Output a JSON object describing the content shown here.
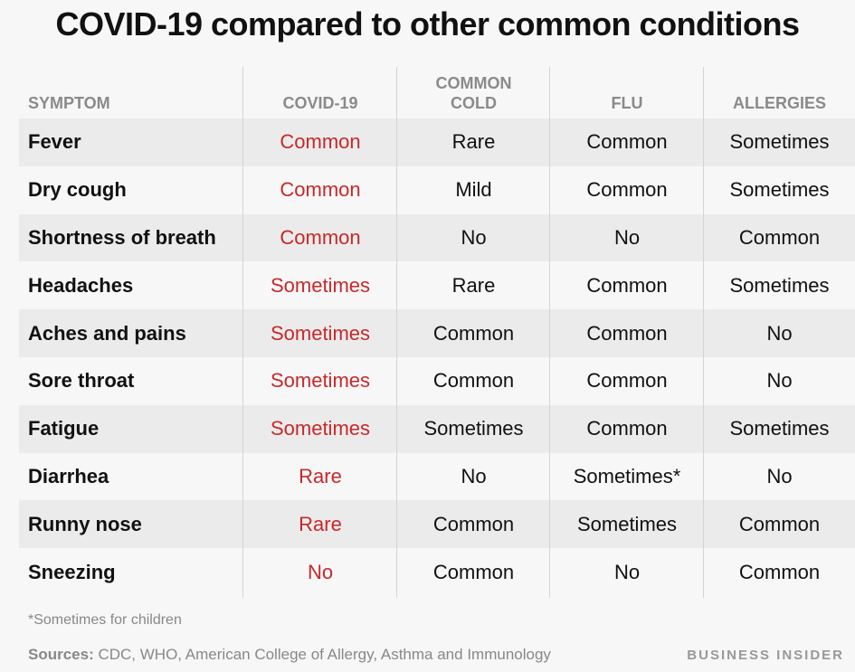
{
  "title": "COVID-19 compared to other common conditions",
  "columns": [
    "SYMPTOM",
    "COVID-19",
    "COMMON\nCOLD",
    "FLU",
    "ALLERGIES"
  ],
  "rows": [
    {
      "symptom": "Fever",
      "covid": "Common",
      "cold": "Rare",
      "flu": "Common",
      "allergies": "Sometimes"
    },
    {
      "symptom": "Dry cough",
      "covid": "Common",
      "cold": "Mild",
      "flu": "Common",
      "allergies": "Sometimes"
    },
    {
      "symptom": "Shortness of breath",
      "covid": "Common",
      "cold": "No",
      "flu": "No",
      "allergies": "Common"
    },
    {
      "symptom": "Headaches",
      "covid": "Sometimes",
      "cold": "Rare",
      "flu": "Common",
      "allergies": "Sometimes"
    },
    {
      "symptom": "Aches and pains",
      "covid": "Sometimes",
      "cold": "Common",
      "flu": "Common",
      "allergies": "No"
    },
    {
      "symptom": "Sore throat",
      "covid": "Sometimes",
      "cold": "Common",
      "flu": "Common",
      "allergies": "No"
    },
    {
      "symptom": "Fatigue",
      "covid": "Sometimes",
      "cold": "Sometimes",
      "flu": "Common",
      "allergies": "Sometimes"
    },
    {
      "symptom": "Diarrhea",
      "covid": "Rare",
      "cold": "No",
      "flu": "Sometimes*",
      "allergies": "No"
    },
    {
      "symptom": "Runny nose",
      "covid": "Rare",
      "cold": "Common",
      "flu": "Sometimes",
      "allergies": "Common"
    },
    {
      "symptom": "Sneezing",
      "covid": "No",
      "cold": "Common",
      "flu": "No",
      "allergies": "Common"
    }
  ],
  "footnote": "*Sometimes for children",
  "sources_label": "Sources:",
  "sources_text": " CDC, WHO,  American College of Allergy, Asthma and Immunology",
  "brand": "BUSINESS INSIDER",
  "colors": {
    "covid": "#c8282b",
    "shaded_row": "#ebebeb",
    "header": "#8a8a8a"
  }
}
